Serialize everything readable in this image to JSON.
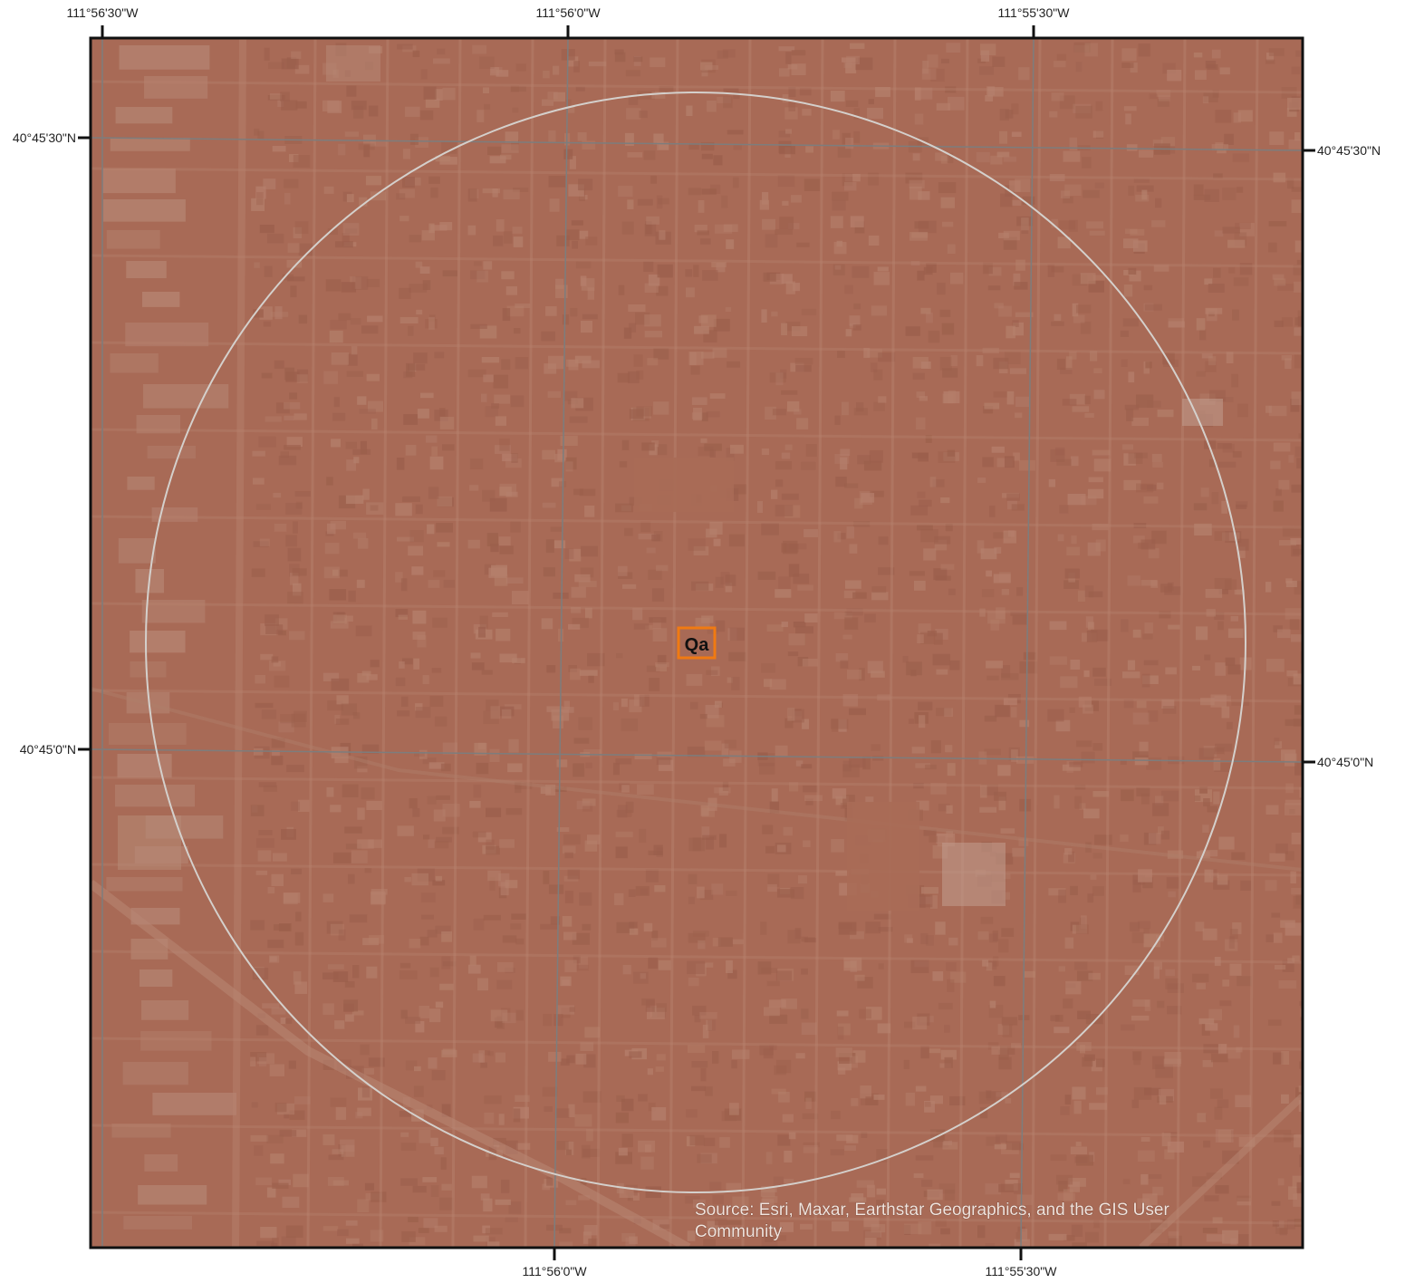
{
  "map": {
    "colors": {
      "imagery_tint": "#a86a56",
      "block_shade": "#9b5f4c",
      "street": "#b98470",
      "graticule": "#7d7d7d",
      "buffer_circle": "#d4d0cc",
      "frame": "#111111",
      "unit_box": "#f07a12"
    },
    "graticule": {
      "top_labels": [
        "111°56'30\"W",
        "111°56'0\"W",
        "111°55'30\"W"
      ],
      "bottom_labels": [
        "111°56'0\"W",
        "111°55'30\"W"
      ],
      "left_labels": [
        "40°45'30\"N",
        "40°45'0\"N"
      ],
      "right_labels": [
        "40°45'30\"N",
        "40°45'0\"N"
      ]
    },
    "unit_label": "Qa",
    "source_lines": [
      "Source: Esri, Maxar, Earthstar Geographics, and the GIS User",
      "Community"
    ]
  }
}
